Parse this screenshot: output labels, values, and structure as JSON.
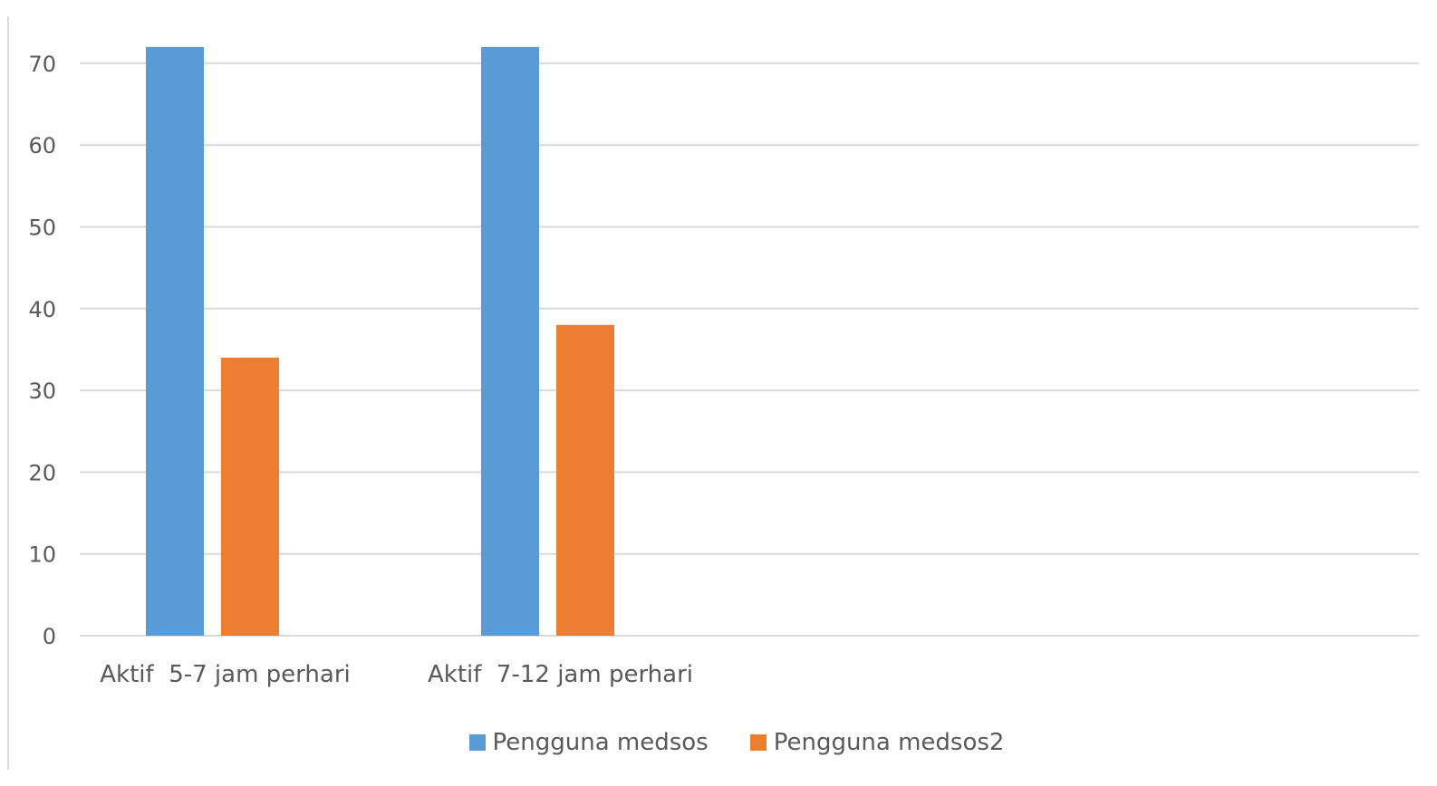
{
  "chart_data": {
    "type": "bar",
    "title": "",
    "xlabel": "",
    "ylabel": "",
    "categories": [
      "Aktif  5-7 jam perhari",
      "Aktif  7-12 jam perhari"
    ],
    "series": [
      {
        "name": "Pengguna medsos",
        "color": "#5b9bd5",
        "values": [
          72,
          72
        ]
      },
      {
        "name": "Pengguna medsos2",
        "color": "#ed7d31",
        "values": [
          34,
          38
        ]
      }
    ],
    "ylim": [
      0,
      70
    ],
    "yticks": [
      0,
      10,
      20,
      30,
      40,
      50,
      60,
      70
    ],
    "grid": true,
    "legend_position": "bottom"
  }
}
